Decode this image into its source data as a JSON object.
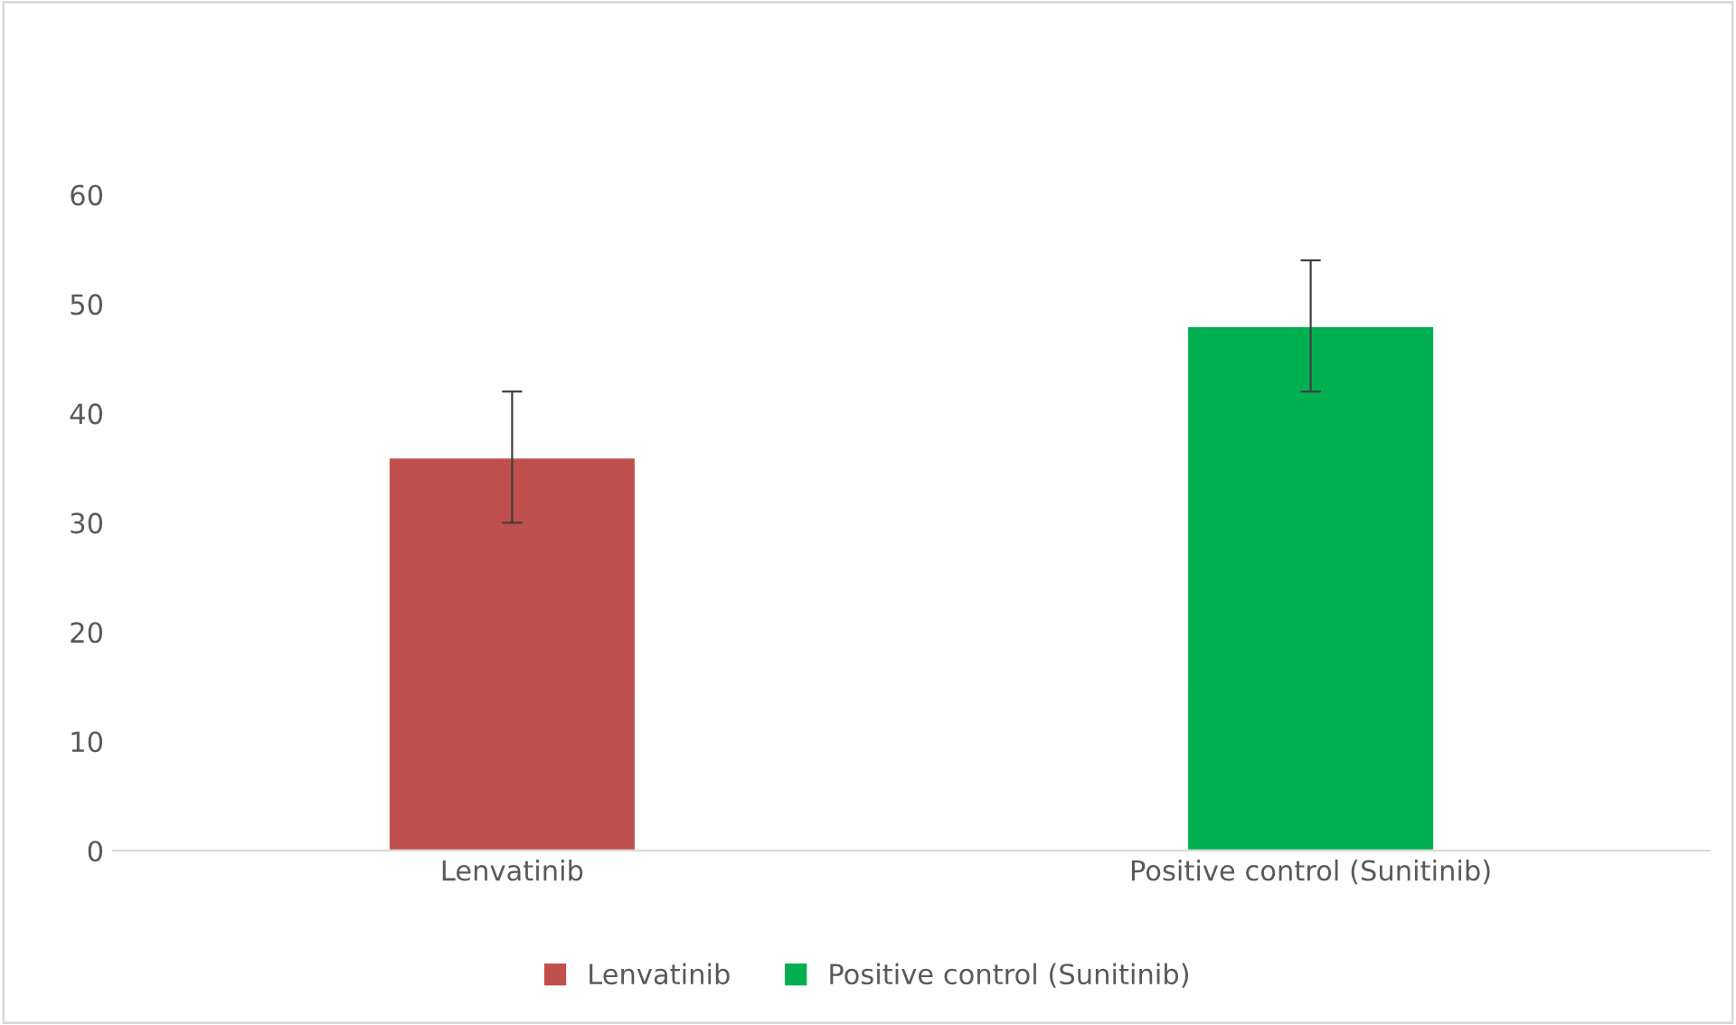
{
  "chart_data": {
    "type": "bar",
    "categories": [
      "Lenvatinib",
      "Positive control (Sunitinib)"
    ],
    "series": [
      {
        "name": "Lenvatinib",
        "color": "#c0504d",
        "values": [
          36,
          null
        ],
        "errors": [
          6,
          null
        ]
      },
      {
        "name": "Positive control (Sunitinib)",
        "color": "#00b050",
        "values": [
          null,
          48
        ],
        "errors": [
          null,
          6
        ]
      }
    ],
    "ylim": [
      0,
      60
    ],
    "yticks": [
      0,
      10,
      20,
      30,
      40,
      50,
      60
    ],
    "grid": false,
    "legend": "bottom"
  }
}
